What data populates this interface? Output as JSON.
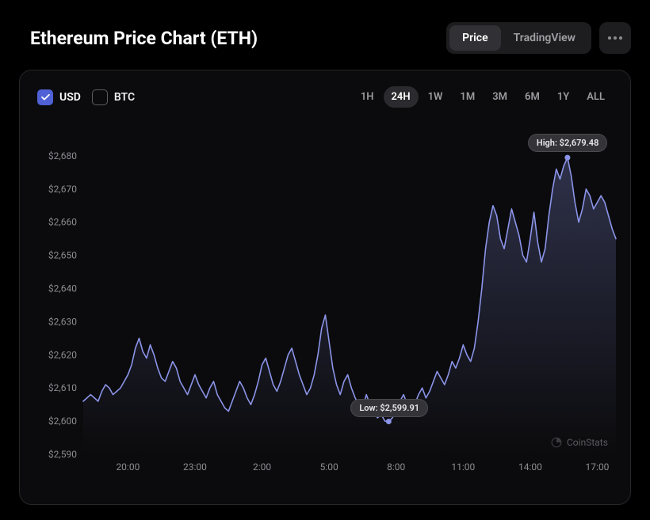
{
  "header": {
    "title": "Ethereum Price Chart (ETH)",
    "view_tabs": {
      "price": "Price",
      "tradingview": "TradingView",
      "active": "price"
    }
  },
  "currencies": {
    "usd": {
      "label": "USD",
      "checked": true,
      "color": "#4f61d5"
    },
    "btc": {
      "label": "BTC",
      "checked": false
    }
  },
  "ranges": {
    "items": [
      "1H",
      "24H",
      "1W",
      "1M",
      "3M",
      "6M",
      "1Y",
      "ALL"
    ],
    "active": "24H"
  },
  "chart": {
    "type": "line",
    "line_color": "#8b94e8",
    "fill_top": "rgba(139,148,232,0.30)",
    "fill_bottom": "rgba(139,148,232,0.00)",
    "background": "#0b0b0d",
    "grid_color": "transparent",
    "axis_text_color": "#8b8b92",
    "axis_fontsize": 12,
    "line_width": 1.6,
    "y": {
      "min": 2590,
      "max": 2685,
      "ticks": [
        2590,
        2600,
        2610,
        2620,
        2630,
        2640,
        2650,
        2660,
        2670,
        2680
      ],
      "tick_labels": [
        "$2,590",
        "$2,600",
        "$2,610",
        "$2,620",
        "$2,630",
        "$2,640",
        "$2,650",
        "$2,660",
        "$2,670",
        "$2,680"
      ]
    },
    "x": {
      "min": 0,
      "max": 143,
      "ticks": [
        12,
        30,
        48,
        66,
        84,
        102,
        120,
        138
      ],
      "tick_labels": [
        "20:00",
        "23:00",
        "2:00",
        "5:00",
        "8:00",
        "11:00",
        "14:00",
        "17:00"
      ]
    },
    "low": {
      "index": 82,
      "value": 2599.91,
      "label": "Low: $2,599.91"
    },
    "high": {
      "index": 130,
      "value": 2679.48,
      "label": "High: $2,679.48"
    },
    "series": [
      2606,
      2607,
      2608,
      2607,
      2606,
      2609,
      2611,
      2610,
      2608,
      2609,
      2610,
      2612,
      2614,
      2617,
      2622,
      2625,
      2621,
      2619,
      2623,
      2620,
      2616,
      2613,
      2612,
      2615,
      2618,
      2616,
      2612,
      2610,
      2608,
      2611,
      2614,
      2611,
      2609,
      2607,
      2610,
      2612,
      2608,
      2606,
      2604,
      2603,
      2606,
      2609,
      2612,
      2610,
      2607,
      2605,
      2608,
      2612,
      2617,
      2619,
      2615,
      2611,
      2609,
      2612,
      2616,
      2620,
      2622,
      2618,
      2614,
      2611,
      2608,
      2610,
      2614,
      2620,
      2628,
      2632,
      2624,
      2616,
      2611,
      2608,
      2612,
      2614,
      2610,
      2607,
      2605,
      2604,
      2608,
      2605,
      2603,
      2601,
      2602,
      2600,
      2599.91,
      2601,
      2603,
      2606,
      2608,
      2605,
      2603,
      2605,
      2608,
      2610,
      2607,
      2609,
      2612,
      2615,
      2613,
      2611,
      2614,
      2618,
      2616,
      2619,
      2623,
      2620,
      2618,
      2622,
      2630,
      2640,
      2652,
      2660,
      2665,
      2662,
      2655,
      2652,
      2658,
      2664,
      2660,
      2656,
      2650,
      2648,
      2655,
      2663,
      2654,
      2648,
      2652,
      2662,
      2670,
      2676,
      2673,
      2677,
      2679.48,
      2674,
      2666,
      2660,
      2664,
      2670,
      2668,
      2664,
      2666,
      2668,
      2666,
      2662,
      2658,
      2655
    ]
  },
  "watermark": {
    "text": "CoinStats"
  }
}
